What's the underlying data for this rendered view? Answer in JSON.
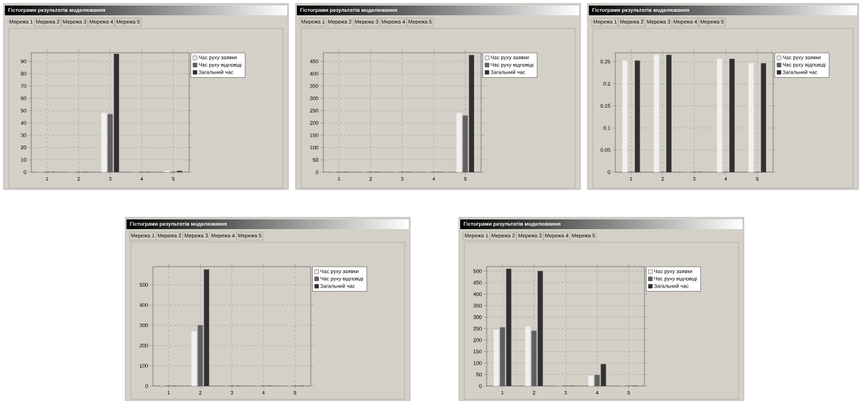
{
  "chart_data": [
    {
      "type": "bar",
      "title": "Гістограми результатів моделювання",
      "annotations": [
        "Мережа 1",
        "Мережа 2",
        "Мережа 3",
        "Мережа 4",
        "Мережа 5"
      ],
      "categories": [
        "1",
        "2",
        "3",
        "4",
        "5"
      ],
      "series": [
        {
          "name": "Час руху заявки",
          "color": "#f0f0f0",
          "values": [
            0,
            0,
            48,
            0,
            1
          ]
        },
        {
          "name": "Час руху відповіді",
          "color": "#606060",
          "values": [
            0,
            0,
            47,
            0,
            0
          ]
        },
        {
          "name": "Загальний час",
          "color": "#303030",
          "values": [
            0,
            0,
            96,
            0,
            1
          ]
        }
      ],
      "ylim": [
        0,
        97
      ],
      "yticks": [
        0,
        10,
        20,
        30,
        40,
        50,
        60,
        70,
        80,
        90
      ],
      "grid": true,
      "legend": "top right"
    },
    {
      "type": "bar",
      "title": "Гістограми результатів моделювання",
      "annotations": [
        "Мережа 1",
        "Мережа 2",
        "Мережа 3",
        "Мережа 4",
        "Мережа 5"
      ],
      "categories": [
        "1",
        "2",
        "3",
        "4",
        "5"
      ],
      "series": [
        {
          "name": "Час руху заявки",
          "color": "#f0f0f0",
          "values": [
            0,
            0,
            0,
            0,
            240
          ]
        },
        {
          "name": "Час руху відповіді",
          "color": "#606060",
          "values": [
            0,
            0,
            0,
            0,
            230
          ]
        },
        {
          "name": "Загальний час",
          "color": "#303030",
          "values": [
            0,
            0,
            0,
            0,
            475
          ]
        }
      ],
      "ylim": [
        0,
        485
      ],
      "yticks": [
        0,
        50,
        100,
        150,
        200,
        250,
        300,
        350,
        400,
        450
      ],
      "grid": true,
      "legend": "top right"
    },
    {
      "type": "bar",
      "title": "Гістограми результатів моделювання",
      "annotations": [
        "Мережа 1",
        "Мережа 2",
        "Мережа 3",
        "Мережа 4",
        "Мережа 5"
      ],
      "categories": [
        "1",
        "2",
        "3",
        "4",
        "5"
      ],
      "series": [
        {
          "name": "Час руху заявки",
          "color": "#f0f0f0",
          "values": [
            0.252,
            0.265,
            0,
            0.256,
            0.246
          ]
        },
        {
          "name": "Час руху відповіді",
          "color": "#606060",
          "values": [
            0,
            0,
            0,
            0,
            0
          ]
        },
        {
          "name": "Загальний час",
          "color": "#303030",
          "values": [
            0.252,
            0.265,
            0,
            0.256,
            0.246
          ]
        }
      ],
      "ylim": [
        0,
        0.27
      ],
      "yticks": [
        0,
        0.05,
        0.1,
        0.15,
        0.2,
        0.25
      ],
      "grid": true,
      "legend": "top right"
    },
    {
      "type": "bar",
      "title": "Гістограми результатів моделювання",
      "annotations": [
        "Мережа 1",
        "Мережа 2",
        "Мережа 3",
        "Мережа 4",
        "Мережа 5"
      ],
      "categories": [
        "1",
        "2",
        "3",
        "4",
        "5"
      ],
      "series": [
        {
          "name": "Час руху заявки",
          "color": "#f0f0f0",
          "values": [
            0,
            270,
            0,
            0,
            0
          ]
        },
        {
          "name": "Час руху відповіді",
          "color": "#606060",
          "values": [
            0,
            300,
            0,
            0,
            0
          ]
        },
        {
          "name": "Загальний час",
          "color": "#303030",
          "values": [
            0,
            575,
            0,
            0,
            0
          ]
        }
      ],
      "ylim": [
        0,
        590
      ],
      "yticks": [
        0,
        100,
        200,
        300,
        400,
        500
      ],
      "grid": true,
      "legend": "top right"
    },
    {
      "type": "bar",
      "title": "Гістограми результатів моделювання",
      "annotations": [
        "Мережа 1",
        "Мережа 2",
        "Мережа 3",
        "Мережа 4",
        "Мережа 5"
      ],
      "categories": [
        "1",
        "2",
        "3",
        "4",
        "5"
      ],
      "series": [
        {
          "name": "Час руху заявки",
          "color": "#f0f0f0",
          "values": [
            245,
            258,
            0,
            45,
            0
          ]
        },
        {
          "name": "Час руху відповіді",
          "color": "#606060",
          "values": [
            255,
            240,
            0,
            48,
            0
          ]
        },
        {
          "name": "Загальний час",
          "color": "#303030",
          "values": [
            510,
            500,
            0,
            95,
            0
          ]
        }
      ],
      "ylim": [
        0,
        520
      ],
      "yticks": [
        0,
        50,
        100,
        150,
        200,
        250,
        300,
        350,
        400,
        450,
        500
      ],
      "grid": true,
      "legend": "top right"
    }
  ]
}
